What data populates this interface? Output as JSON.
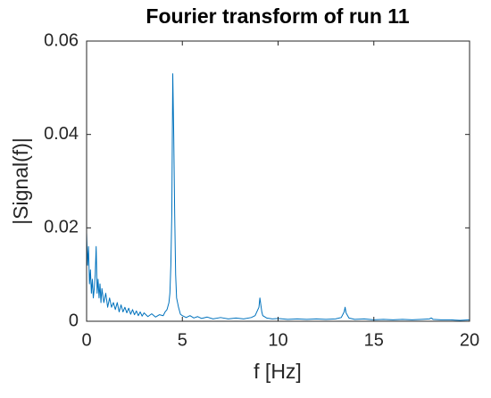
{
  "chart_data": {
    "type": "line",
    "title": "Fourier transform of run 11",
    "xlabel": "f [Hz]",
    "ylabel": "|Signal(f)|",
    "color": "#0072bd",
    "x": [
      0,
      0.05,
      0.1,
      0.15,
      0.2,
      0.25,
      0.3,
      0.35,
      0.4,
      0.45,
      0.5,
      0.55,
      0.6,
      0.65,
      0.7,
      0.75,
      0.8,
      0.9,
      1.0,
      1.1,
      1.2,
      1.3,
      1.4,
      1.5,
      1.6,
      1.7,
      1.8,
      1.9,
      2.0,
      2.1,
      2.2,
      2.3,
      2.4,
      2.5,
      2.6,
      2.7,
      2.8,
      2.9,
      3.0,
      3.2,
      3.4,
      3.6,
      3.8,
      4.0,
      4.1,
      4.2,
      4.3,
      4.35,
      4.4,
      4.45,
      4.5,
      4.55,
      4.6,
      4.65,
      4.7,
      4.8,
      4.9,
      5.0,
      5.2,
      5.4,
      5.6,
      5.8,
      6.0,
      6.3,
      6.6,
      7.0,
      7.4,
      7.8,
      8.2,
      8.6,
      8.8,
      9.0,
      9.05,
      9.1,
      9.15,
      9.2,
      9.4,
      9.7,
      10,
      10.5,
      11,
      11.5,
      12,
      12.5,
      13,
      13.3,
      13.45,
      13.5,
      13.55,
      13.7,
      14,
      14.5,
      15,
      15.5,
      16,
      16.5,
      17,
      17.5,
      17.9,
      18,
      18.1,
      18.5,
      19,
      19.5,
      20
    ],
    "values": [
      0.019,
      0.012,
      0.016,
      0.008,
      0.011,
      0.006,
      0.009,
      0.005,
      0.007,
      0.01,
      0.016,
      0.006,
      0.009,
      0.005,
      0.008,
      0.004,
      0.007,
      0.004,
      0.006,
      0.003,
      0.005,
      0.003,
      0.004,
      0.0025,
      0.004,
      0.002,
      0.0035,
      0.002,
      0.003,
      0.0018,
      0.0028,
      0.0015,
      0.0025,
      0.0014,
      0.0022,
      0.0012,
      0.002,
      0.0011,
      0.0018,
      0.001,
      0.0016,
      0.0009,
      0.0014,
      0.0012,
      0.002,
      0.0025,
      0.004,
      0.006,
      0.012,
      0.023,
      0.053,
      0.04,
      0.023,
      0.01,
      0.005,
      0.003,
      0.0015,
      0.0012,
      0.0008,
      0.0012,
      0.0007,
      0.001,
      0.0006,
      0.0009,
      0.0005,
      0.0008,
      0.0005,
      0.0007,
      0.0005,
      0.0008,
      0.0012,
      0.003,
      0.005,
      0.0035,
      0.002,
      0.0012,
      0.0007,
      0.0005,
      0.0006,
      0.0004,
      0.0005,
      0.0004,
      0.0005,
      0.0004,
      0.0005,
      0.0008,
      0.002,
      0.003,
      0.0018,
      0.0007,
      0.0004,
      0.0005,
      0.0003,
      0.0004,
      0.0003,
      0.0004,
      0.0003,
      0.0004,
      0.0005,
      0.0007,
      0.0004,
      0.0003,
      0.0003,
      0.0002,
      0.0003
    ],
    "xlim": [
      0,
      20
    ],
    "xticks": [
      0,
      5,
      10,
      15,
      20
    ],
    "ylim": [
      0,
      0.06
    ],
    "yticks": [
      0,
      0.02,
      0.04,
      0.06
    ]
  }
}
